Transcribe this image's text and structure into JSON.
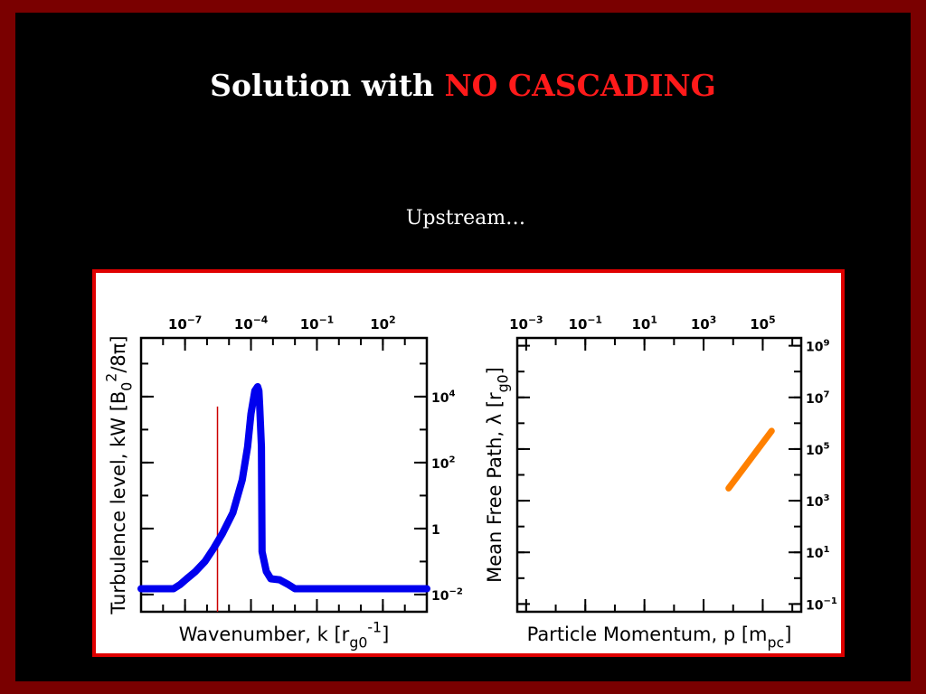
{
  "slide": {
    "title_prefix": "Solution with ",
    "title_highlight": "NO CASCADING",
    "subtitle": "Upstream…"
  },
  "colors": {
    "frame": "#7a0000",
    "background": "#000000",
    "title": "#ffffff",
    "title_highlight": "#ff1a1a",
    "figure_border": "#e00000",
    "turbulence_curve": "#0000ee",
    "marker_line": "#cc0000",
    "mfp_curve": "#ff8000"
  },
  "chart_data": [
    {
      "type": "line",
      "xlabel": "Wavenumber, k [r_g0^-1]",
      "ylabel": "Turbulence level, kW [B_0^2/8π]",
      "x_scale": "log",
      "y_scale": "log",
      "xlim": [
        1e-09,
        10000.0
      ],
      "ylim": [
        0.003,
        600000
      ],
      "x_ticks": [
        {
          "value": 1e-07,
          "base": "10",
          "exp": "−7"
        },
        {
          "value": 0.0001,
          "base": "10",
          "exp": "−4"
        },
        {
          "value": 0.1,
          "base": "10",
          "exp": "−1"
        },
        {
          "value": 100,
          "base": "10",
          "exp": "2"
        }
      ],
      "y_ticks": [
        {
          "value": 0.01,
          "base": "10",
          "exp": "−2"
        },
        {
          "value": 1,
          "base": "1",
          "exp": ""
        },
        {
          "value": 100,
          "base": "10",
          "exp": "2"
        },
        {
          "value": 10000,
          "base": "10",
          "exp": "4"
        }
      ],
      "grid": false,
      "series": [
        {
          "x": [
            1e-09,
            3e-08,
            6e-08,
            1.2e-07,
            3e-07,
            8e-07,
            2e-06,
            5e-06,
            1.5e-05,
            4e-05,
            7e-05,
            0.0001,
            0.00015,
            0.0002,
            0.00023,
            0.00025,
            0.0003,
            0.00032,
            0.0005,
            0.0008,
            0.002,
            0.005,
            0.01,
            0.1,
            10,
            10000.0
          ],
          "y": [
            0.015,
            0.015,
            0.02,
            0.03,
            0.05,
            0.1,
            0.25,
            0.7,
            3,
            30,
            300,
            3000,
            15000,
            20000,
            15000,
            5000,
            300,
            0.2,
            0.05,
            0.03,
            0.028,
            0.02,
            0.015,
            0.015,
            0.015,
            0.015
          ]
        }
      ],
      "marker_line": {
        "x": 3e-06,
        "y_range": [
          0.003,
          5000
        ]
      }
    },
    {
      "type": "line",
      "xlabel": "Particle Momentum, p [m_pc]",
      "ylabel": "Mean Free Path, λ [r_g0]",
      "x_scale": "log",
      "y_scale": "log",
      "xlim": [
        0.0005,
        2000000
      ],
      "ylim": [
        0.05,
        2000000000
      ],
      "x_ticks": [
        {
          "value": 0.001,
          "base": "10",
          "exp": "−3"
        },
        {
          "value": 0.1,
          "base": "10",
          "exp": "−1"
        },
        {
          "value": 10,
          "base": "10",
          "exp": "1"
        },
        {
          "value": 1000,
          "base": "10",
          "exp": "3"
        },
        {
          "value": 100000,
          "base": "10",
          "exp": "5"
        }
      ],
      "y_ticks": [
        {
          "value": 0.1,
          "base": "10",
          "exp": "−1"
        },
        {
          "value": 10,
          "base": "10",
          "exp": "1"
        },
        {
          "value": 1000,
          "base": "10",
          "exp": "3"
        },
        {
          "value": 100000,
          "base": "10",
          "exp": "5"
        },
        {
          "value": 10000000,
          "base": "10",
          "exp": "7"
        },
        {
          "value": 1000000000,
          "base": "10",
          "exp": "9"
        }
      ],
      "grid": false,
      "series": [
        {
          "x": [
            7000,
            200000
          ],
          "y": [
            3000,
            500000
          ]
        }
      ]
    }
  ]
}
